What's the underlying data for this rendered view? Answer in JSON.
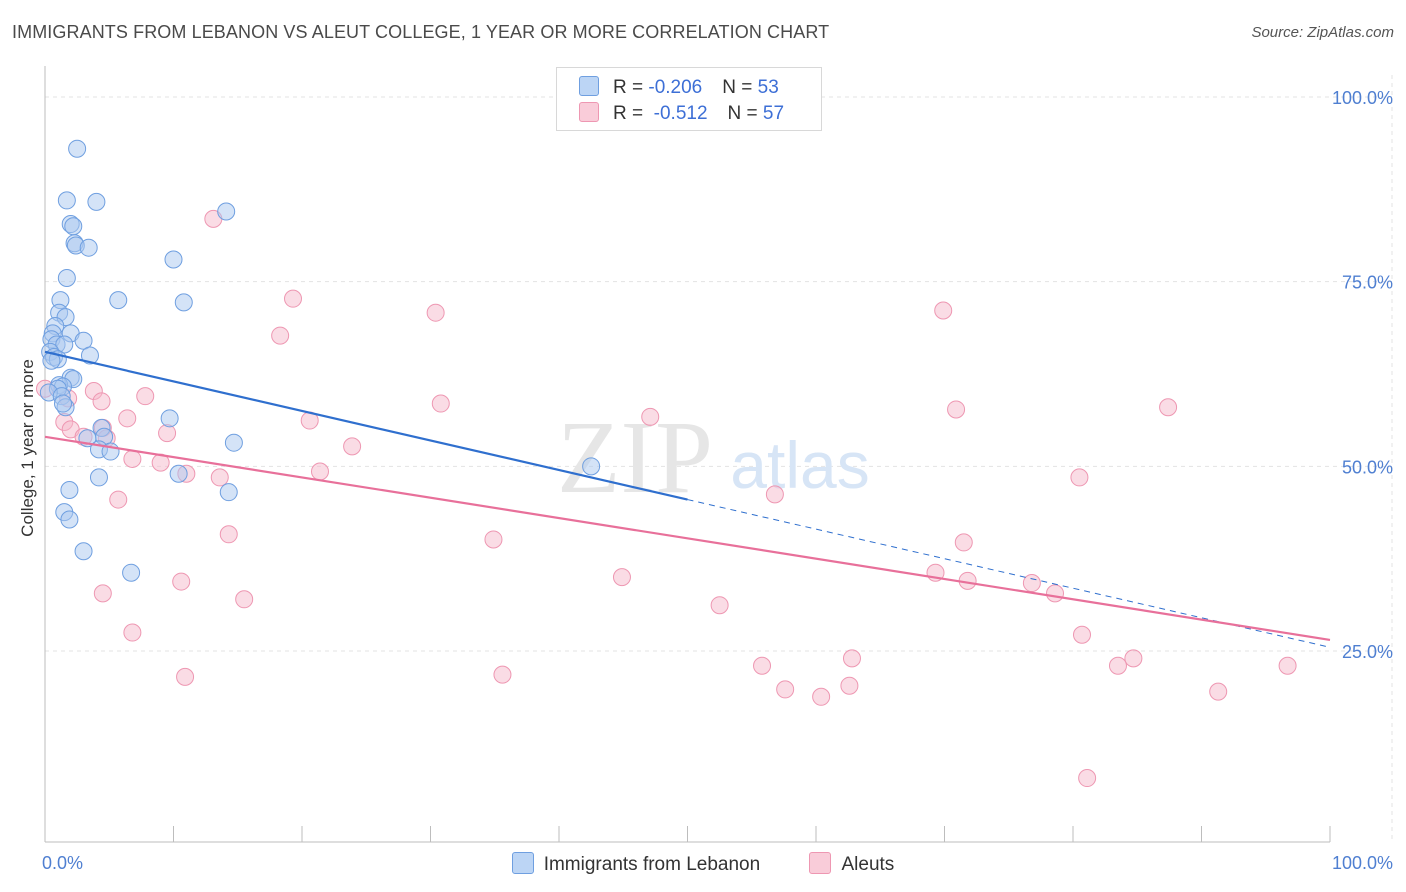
{
  "header": {
    "title": "IMMIGRANTS FROM LEBANON VS ALEUT COLLEGE, 1 YEAR OR MORE CORRELATION CHART",
    "source": "Source: ZipAtlas.com"
  },
  "watermark": {
    "zip": "ZIP",
    "atlas": "atlas"
  },
  "legend_top": {
    "rows": [
      {
        "r_label": "R = ",
        "r_value": "-0.206",
        "n_label": "N = ",
        "n_value": "53"
      },
      {
        "r_label": "R = ",
        "r_value": " -0.512",
        "n_label": "N = ",
        "n_value": "57"
      }
    ]
  },
  "colors": {
    "lebanon_fill": "#a9c8f0",
    "lebanon_stroke": "#6f9fe0",
    "lebanon_line": "#2f6fce",
    "aleut_fill": "#f6b9cc",
    "aleut_stroke": "#ee97b2",
    "aleut_line": "#e8709a",
    "tick_color": "#4f7fd1",
    "grid": "#e3e3e3"
  },
  "chart_data": {
    "type": "scatter",
    "title": "IMMIGRANTS FROM LEBANON VS ALEUT COLLEGE, 1 YEAR OR MORE CORRELATION CHART",
    "xlabel": "",
    "ylabel": "College, 1 year or more",
    "xlim": [
      0,
      100
    ],
    "ylim": [
      0,
      102
    ],
    "x_tick_labels": [
      "0.0%",
      "100.0%"
    ],
    "y_ticks": [
      25,
      50,
      75,
      100
    ],
    "y_tick_labels": [
      "25.0%",
      "50.0%",
      "75.0%",
      "100.0%"
    ],
    "grid": true,
    "legend_placement": "top-center",
    "series": [
      {
        "name": "Immigrants from Lebanon",
        "r": -0.206,
        "n": 53,
        "trend": {
          "x0": 0,
          "y0": 65.5,
          "x1": 50,
          "y1": 45.5,
          "dashed_to_x": 100,
          "dashed_to_y": 25.5
        },
        "points": [
          [
            2.5,
            93
          ],
          [
            1.7,
            86
          ],
          [
            4.0,
            85.8
          ],
          [
            14.1,
            84.5
          ],
          [
            2.0,
            82.8
          ],
          [
            2.2,
            82.5
          ],
          [
            2.3,
            80.2
          ],
          [
            2.4,
            79.9
          ],
          [
            3.4,
            79.6
          ],
          [
            10.0,
            78
          ],
          [
            1.7,
            75.5
          ],
          [
            5.7,
            72.5
          ],
          [
            10.8,
            72.2
          ],
          [
            1.2,
            72.5
          ],
          [
            1.1,
            70.8
          ],
          [
            1.6,
            70.2
          ],
          [
            0.8,
            69
          ],
          [
            0.6,
            68
          ],
          [
            2.0,
            68
          ],
          [
            0.5,
            67.2
          ],
          [
            3.0,
            67
          ],
          [
            0.9,
            66.5
          ],
          [
            1.5,
            66.5
          ],
          [
            0.4,
            65.5
          ],
          [
            3.5,
            65
          ],
          [
            0.7,
            64.8
          ],
          [
            1.0,
            64.5
          ],
          [
            0.5,
            64.3
          ],
          [
            2.0,
            62
          ],
          [
            2.2,
            61.8
          ],
          [
            1.1,
            61
          ],
          [
            1.4,
            60.8
          ],
          [
            1.0,
            60.5
          ],
          [
            0.3,
            60
          ],
          [
            1.3,
            59.5
          ],
          [
            1.6,
            58
          ],
          [
            1.4,
            58.5
          ],
          [
            9.7,
            56.5
          ],
          [
            4.4,
            55.2
          ],
          [
            4.6,
            54
          ],
          [
            3.3,
            53.8
          ],
          [
            14.7,
            53.2
          ],
          [
            4.2,
            52.3
          ],
          [
            5.1,
            52
          ],
          [
            10.4,
            49
          ],
          [
            4.2,
            48.5
          ],
          [
            14.3,
            46.5
          ],
          [
            1.9,
            46.8
          ],
          [
            1.5,
            43.8
          ],
          [
            1.9,
            42.8
          ],
          [
            3.0,
            38.5
          ],
          [
            6.7,
            35.6
          ],
          [
            42.5,
            50
          ]
        ]
      },
      {
        "name": "Aleuts",
        "r": -0.512,
        "n": 57,
        "trend": {
          "x0": 0,
          "y0": 54,
          "x1": 100,
          "y1": 26.5
        },
        "points": [
          [
            13.1,
            83.5
          ],
          [
            19.3,
            72.7
          ],
          [
            30.4,
            70.8
          ],
          [
            69.9,
            71.1
          ],
          [
            18.3,
            67.7
          ],
          [
            3.8,
            60.2
          ],
          [
            7.8,
            59.5
          ],
          [
            4.4,
            58.8
          ],
          [
            1.8,
            59.2
          ],
          [
            30.8,
            58.5
          ],
          [
            70.9,
            57.7
          ],
          [
            87.4,
            58
          ],
          [
            6.4,
            56.5
          ],
          [
            20.6,
            56.2
          ],
          [
            47.1,
            56.7
          ],
          [
            1.5,
            56
          ],
          [
            2.0,
            55
          ],
          [
            4.5,
            55.2
          ],
          [
            9.5,
            54.5
          ],
          [
            3.0,
            54
          ],
          [
            4.8,
            53.8
          ],
          [
            23.9,
            52.7
          ],
          [
            6.8,
            51
          ],
          [
            9.0,
            50.5
          ],
          [
            11.0,
            49
          ],
          [
            21.4,
            49.3
          ],
          [
            13.6,
            48.5
          ],
          [
            80.5,
            48.5
          ],
          [
            5.7,
            45.5
          ],
          [
            56.8,
            46.2
          ],
          [
            14.3,
            40.8
          ],
          [
            34.9,
            40.1
          ],
          [
            71.5,
            39.7
          ],
          [
            44.9,
            35
          ],
          [
            10.6,
            34.4
          ],
          [
            69.3,
            35.6
          ],
          [
            71.8,
            34.5
          ],
          [
            76.8,
            34.2
          ],
          [
            4.5,
            32.8
          ],
          [
            15.5,
            32
          ],
          [
            78.6,
            32.8
          ],
          [
            52.5,
            31.2
          ],
          [
            6.8,
            27.5
          ],
          [
            80.7,
            27.2
          ],
          [
            62.8,
            24
          ],
          [
            84.7,
            24
          ],
          [
            10.9,
            21.5
          ],
          [
            35.6,
            21.8
          ],
          [
            55.8,
            23
          ],
          [
            83.5,
            23
          ],
          [
            96.7,
            23
          ],
          [
            57.6,
            19.8
          ],
          [
            62.6,
            20.3
          ],
          [
            60.4,
            18.8
          ],
          [
            91.3,
            19.5
          ],
          [
            81.1,
            7.8
          ],
          [
            0.0,
            60.5
          ]
        ]
      }
    ]
  },
  "legend_bottom": {
    "items": [
      {
        "label": "Immigrants from Lebanon"
      },
      {
        "label": "Aleuts"
      }
    ]
  }
}
